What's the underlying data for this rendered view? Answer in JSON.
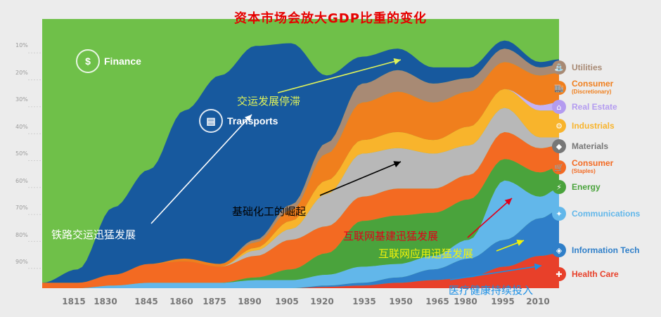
{
  "chart_data": {
    "type": "area",
    "title": "资本市场会放大GDP比重的变化",
    "x": [
      1800,
      1815,
      1830,
      1845,
      1860,
      1875,
      1890,
      1905,
      1920,
      1935,
      1950,
      1965,
      1980,
      1995,
      2010,
      2018
    ],
    "x_ticks": [
      "1815",
      "1830",
      "1845",
      "1860",
      "1875",
      "1890",
      "1905",
      "1920",
      "1935",
      "1950",
      "1965",
      "1980",
      "1995",
      "2010"
    ],
    "y_ticks": [
      "10%",
      "20%",
      "30%",
      "40%",
      "50%",
      "60%",
      "70%",
      "80%",
      "90%"
    ],
    "series": [
      {
        "name": "Health Care",
        "color": "#e8402a",
        "values": [
          0,
          0,
          0,
          0,
          0,
          0,
          0,
          0,
          0.5,
          1,
          2,
          3,
          4,
          8,
          12,
          13
        ]
      },
      {
        "name": "Information Tech",
        "color": "#2f7fc9",
        "values": [
          0,
          0,
          0,
          0,
          0,
          0,
          0,
          0,
          0.5,
          1,
          2,
          4,
          7,
          10,
          14,
          16
        ]
      },
      {
        "name": "Communications",
        "color": "#62b7ea",
        "values": [
          0,
          0,
          1,
          2,
          2,
          2,
          3,
          3,
          4,
          6,
          5,
          5,
          7,
          22,
          8,
          8
        ]
      },
      {
        "name": "Energy",
        "color": "#4aa33c",
        "values": [
          0,
          0,
          0,
          0,
          0,
          0,
          1,
          4,
          8,
          17,
          18,
          16,
          15,
          8,
          9,
          8
        ]
      },
      {
        "name": "Consumer (Staples)",
        "color": "#f36a22",
        "values": [
          2,
          2,
          4,
          7,
          8,
          6,
          8,
          11,
          10,
          9,
          10,
          9,
          9,
          10,
          9,
          8
        ]
      },
      {
        "name": "Materials",
        "color": "#b8b8b8",
        "values": [
          0,
          0,
          0,
          0,
          0,
          0,
          2,
          4,
          12,
          16,
          15,
          13,
          11,
          9,
          4,
          3
        ]
      },
      {
        "name": "Industrials",
        "color": "#f8b42c",
        "values": [
          0,
          0,
          0,
          0,
          0,
          0,
          1,
          3,
          5,
          5,
          6,
          5,
          7,
          7,
          10,
          10
        ]
      },
      {
        "name": "Real Estate",
        "color": "#c5b2f5",
        "values": [
          0,
          0,
          0,
          0,
          0,
          0,
          0,
          0,
          0,
          0,
          0,
          0,
          0,
          0,
          2,
          3
        ]
      },
      {
        "name": "Consumer (Discretionary)",
        "color": "#f07f1d",
        "values": [
          0,
          0,
          0,
          0,
          1,
          1,
          2,
          4,
          10,
          14,
          15,
          14,
          13,
          10,
          11,
          11
        ]
      },
      {
        "name": "Utilities",
        "color": "#a88a74",
        "values": [
          0,
          0,
          0,
          0,
          0,
          0,
          1,
          2,
          4,
          7,
          8,
          7,
          5,
          5,
          3,
          3
        ]
      },
      {
        "name": "Transports",
        "color": "#17599e",
        "values": [
          0,
          5,
          25,
          35,
          55,
          70,
          72,
          60,
          25,
          10,
          8,
          6,
          4,
          3,
          2,
          2
        ]
      },
      {
        "name": "Finance",
        "color": "#6fc049",
        "values": [
          98,
          93,
          70,
          56,
          34,
          21,
          10,
          9,
          21,
          14,
          11,
          18,
          18,
          8,
          16,
          15
        ]
      }
    ],
    "legend_placement": "right",
    "annotations": [
      "铁路交运迅猛发展",
      "交运发展停滞",
      "基础化工的崛起",
      "互联网基建迅猛发展",
      "互联网应用迅猛发展",
      "医疗健康持续投入"
    ]
  },
  "sector_labels": {
    "finance": "Finance",
    "transports": "Transports"
  },
  "legend": [
    {
      "label": "Utilities",
      "sub": "",
      "color": "#a88a74",
      "icon": "faucet-icon",
      "glyph": "⛲"
    },
    {
      "label": "Consumer",
      "sub": "(Discretionary)",
      "color": "#f07f1d",
      "icon": "shop-icon",
      "glyph": "🏬"
    },
    {
      "label": "Real Estate",
      "sub": "",
      "color": "#b49cf0",
      "icon": "house-icon",
      "glyph": "⌂"
    },
    {
      "label": "Industrials",
      "sub": "",
      "color": "#f8b42c",
      "icon": "factory-icon",
      "glyph": "⚙"
    },
    {
      "label": "Materials",
      "sub": "",
      "color": "#777777",
      "icon": "diamond-icon",
      "glyph": "◆"
    },
    {
      "label": "Consumer",
      "sub": "(Staples)",
      "color": "#f36a22",
      "icon": "cart-icon",
      "glyph": "🛒"
    },
    {
      "label": "Energy",
      "sub": "",
      "color": "#4aa33c",
      "icon": "bolt-icon",
      "glyph": "⚡"
    },
    {
      "label": "Communications",
      "sub": "",
      "color": "#62b7ea",
      "icon": "satellite-icon",
      "glyph": "✦"
    },
    {
      "label": "Information Tech",
      "sub": "",
      "color": "#2f7fc9",
      "icon": "chip-icon",
      "glyph": "◈"
    },
    {
      "label": "Health Care",
      "sub": "",
      "color": "#e8402a",
      "icon": "cross-icon",
      "glyph": "✚"
    }
  ]
}
